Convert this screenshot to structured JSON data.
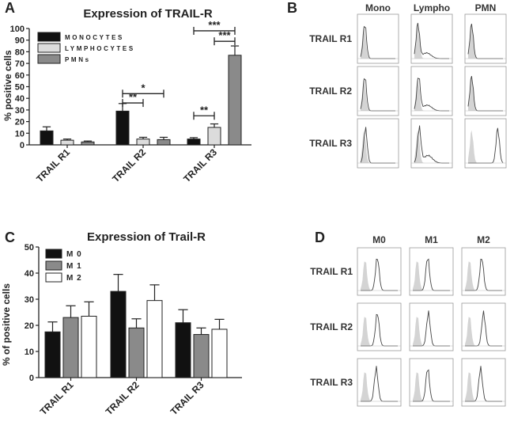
{
  "panels": {
    "a": "A",
    "b": "B",
    "c": "C",
    "d": "D"
  },
  "chart_data": [
    {
      "type": "bar",
      "title": "Expression of TRAIL-R",
      "xlabel": "",
      "ylabel": "% positive cells",
      "ylim": [
        0,
        100
      ],
      "yticks": [
        "0",
        "10",
        "20",
        "30",
        "40",
        "50",
        "60",
        "70",
        "80",
        "90",
        "100"
      ],
      "categories": [
        "TRAIL R1",
        "TRAIL R2",
        "TRAIL R3"
      ],
      "legend_position": "top-left",
      "grid": false,
      "series": [
        {
          "name": "MONOCYTES",
          "color": "#111111",
          "values": [
            12,
            29,
            5
          ],
          "errors": [
            3.5,
            6.5,
            1.2
          ]
        },
        {
          "name": "LYMPHOCYTES",
          "color": "#dcdcdc",
          "values": [
            4,
            5,
            15
          ],
          "errors": [
            1,
            1.5,
            3
          ]
        },
        {
          "name": "PMNs",
          "color": "#8a8a8a",
          "values": [
            2.5,
            4.5,
            77
          ],
          "errors": [
            0.8,
            2,
            8
          ]
        }
      ],
      "significance": [
        {
          "label": "**",
          "category": "TRAIL R2",
          "from_series": 0,
          "to_series": 1,
          "y": 36
        },
        {
          "label": "*",
          "category": "TRAIL R2",
          "from_series": 0,
          "to_series": 2,
          "y": 44
        },
        {
          "label": "**",
          "category": "TRAIL R3",
          "from_series": 0,
          "to_series": 1,
          "y": 25
        },
        {
          "label": "***",
          "category": "TRAIL R3",
          "from_series": 1,
          "to_series": 2,
          "y": 89
        },
        {
          "label": "***",
          "category": "TRAIL R3",
          "from_series": 0,
          "to_series": 2,
          "y": 98
        }
      ]
    },
    {
      "type": "bar",
      "title": "Expression of Trail-R",
      "xlabel": "",
      "ylabel": "% of positive cells",
      "ylim": [
        0,
        50
      ],
      "yticks": [
        "0",
        "10",
        "20",
        "30",
        "40",
        "50"
      ],
      "categories": [
        "TRAIL R1",
        "TRAIL R2",
        "TRAIL R3"
      ],
      "legend_position": "top-left",
      "grid": false,
      "series": [
        {
          "name": "M 0",
          "color": "#111111",
          "values": [
            17.5,
            33,
            21
          ],
          "errors": [
            3.8,
            6.5,
            5
          ]
        },
        {
          "name": "M 1",
          "color": "#8a8a8a",
          "values": [
            23,
            19,
            16.5
          ],
          "errors": [
            4.5,
            3.5,
            2.5
          ]
        },
        {
          "name": "M 2",
          "color": "#ffffff",
          "values": [
            23.5,
            29.5,
            18.5
          ],
          "errors": [
            5.5,
            6,
            3.8
          ]
        }
      ]
    }
  ],
  "flow_b": {
    "columns": [
      "Mono",
      "Lympho",
      "PMN"
    ],
    "rows": [
      "TRAIL R1",
      "TRAIL R2",
      "TRAIL R3"
    ]
  },
  "flow_d": {
    "columns": [
      "M0",
      "M1",
      "M2"
    ],
    "rows": [
      "TRAIL R1",
      "TRAIL R2",
      "TRAIL R3"
    ]
  }
}
